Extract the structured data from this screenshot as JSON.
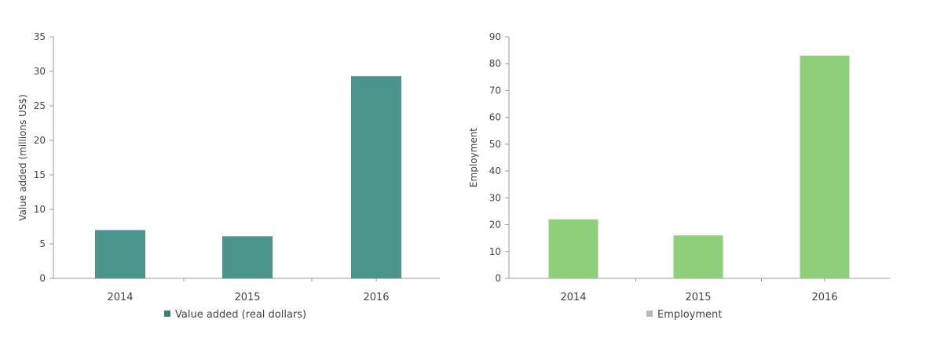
{
  "chart_data": [
    {
      "type": "bar",
      "categories": [
        "2014",
        "2015",
        "2016"
      ],
      "values": [
        7.0,
        6.1,
        29.3
      ],
      "ylabel": "Value added (millions US$)",
      "yticks": [
        "0",
        "5",
        "10",
        "15",
        "20",
        "25",
        "30",
        "35"
      ],
      "ylim": [
        0,
        35
      ],
      "legend": "Value added (real dollars)",
      "legend_position": "bottom",
      "grid": false,
      "color": "#4a948c",
      "legend_color": "#3f7f78"
    },
    {
      "type": "bar",
      "categories": [
        "2014",
        "2015",
        "2016"
      ],
      "values": [
        22,
        16,
        83
      ],
      "ylabel": "Employment",
      "yticks": [
        "0",
        "10",
        "20",
        "30",
        "40",
        "50",
        "60",
        "70",
        "80",
        "90"
      ],
      "ylim": [
        0,
        90
      ],
      "legend": "Employment",
      "legend_position": "bottom",
      "grid": false,
      "color": "#8fce7a",
      "legend_color": "#b9b9b9"
    }
  ]
}
